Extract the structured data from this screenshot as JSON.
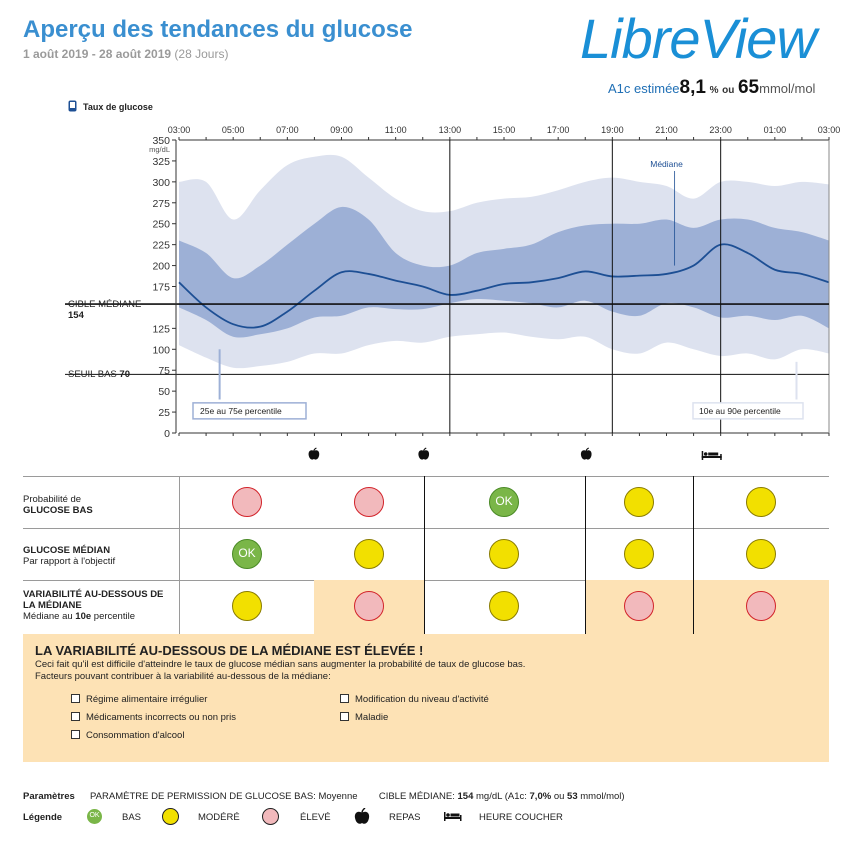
{
  "header": {
    "title": "Aperçu des tendances du glucose",
    "date_range": "1 août 2019 - 28 août 2019",
    "days": "(28 Jours)",
    "logo": "LibreView",
    "a1c_label": "A1c estimée",
    "a1c_value": "8,1",
    "a1c_pct": "%",
    "a1c_or": "ou",
    "a1c_mmol": "65",
    "a1c_unit": "mmol/mol"
  },
  "legend_top": "Taux de glucose",
  "chart_data": {
    "type": "area",
    "x_ticks": [
      "03:00",
      "05:00",
      "07:00",
      "09:00",
      "11:00",
      "13:00",
      "15:00",
      "17:00",
      "19:00",
      "21:00",
      "23:00",
      "01:00",
      "03:00"
    ],
    "y_ticks": [
      0,
      25,
      50,
      75,
      100,
      125,
      175,
      200,
      225,
      250,
      275,
      300,
      325,
      350
    ],
    "y_unit": "mg/dL",
    "ylim": [
      0,
      350
    ],
    "target_label": "CIBLE MÉDIANE",
    "target_value_label": "154",
    "target": 154,
    "low_label": "SEUIL BAS",
    "low_value_label": "70",
    "low": 70,
    "median_label": "Médiane",
    "iqr_label": "25e au 75e percentile",
    "outer_label": "10e au 90e percentile",
    "x_hours": [
      0,
      1,
      2,
      3,
      4,
      5,
      6,
      7,
      8,
      9,
      10,
      11,
      12,
      13,
      14,
      15,
      16,
      17,
      18,
      19,
      20,
      21,
      22,
      23,
      24
    ],
    "series": [
      {
        "name": "10e percentile",
        "values": [
          105,
          90,
          78,
          80,
          85,
          95,
          95,
          105,
          110,
          108,
          115,
          118,
          120,
          115,
          112,
          115,
          100,
          95,
          108,
          100,
          92,
          95,
          88,
          100,
          95
        ]
      },
      {
        "name": "25e percentile",
        "values": [
          150,
          135,
          115,
          118,
          125,
          138,
          140,
          150,
          148,
          148,
          155,
          160,
          158,
          155,
          150,
          158,
          145,
          140,
          155,
          150,
          138,
          140,
          135,
          140,
          125
        ]
      },
      {
        "name": "Médiane",
        "values": [
          180,
          150,
          130,
          127,
          145,
          170,
          192,
          190,
          182,
          175,
          165,
          170,
          178,
          180,
          185,
          193,
          187,
          188,
          190,
          200,
          225,
          215,
          195,
          190,
          180
        ]
      },
      {
        "name": "75e percentile",
        "values": [
          230,
          215,
          185,
          200,
          225,
          250,
          270,
          255,
          215,
          200,
          200,
          215,
          220,
          225,
          240,
          248,
          250,
          250,
          255,
          245,
          255,
          255,
          245,
          240,
          230
        ]
      },
      {
        "name": "90e percentile",
        "values": [
          300,
          300,
          255,
          290,
          320,
          330,
          330,
          305,
          280,
          265,
          265,
          275,
          280,
          282,
          290,
          300,
          305,
          300,
          295,
          280,
          300,
          300,
          295,
          300,
          297
        ]
      }
    ]
  },
  "events": {
    "meal_label": "REPAS",
    "bed_label": "HEURE COUCHER"
  },
  "rows": [
    {
      "label_line1": "Probabilité de",
      "label_line2": "GLUCOSE BAS",
      "cells": [
        "ÉLEVÉ",
        "ÉLEVÉ",
        "BAS",
        "MODÉRÉ",
        "MODÉRÉ"
      ]
    },
    {
      "label_line1": "GLUCOSE MÉDIAN",
      "label_line2": "Par rapport à l'objectif",
      "cells": [
        "BAS",
        "MODÉRÉ",
        "MODÉRÉ",
        "MODÉRÉ",
        "MODÉRÉ"
      ]
    },
    {
      "label_line1": "VARIABILITÉ AU-DESSOUS DE",
      "label_line2": "LA MÉDIANE",
      "label_line3_a": "Médiane au ",
      "label_line3_b": "10e",
      "label_line3_c": " percentile",
      "cells": [
        "MODÉRÉ",
        "ÉLEVÉ",
        "MODÉRÉ",
        "ÉLEVÉ",
        "ÉLEVÉ"
      ]
    }
  ],
  "ok_text": "OK",
  "warning": {
    "title": "LA VARIABILITÉ AU-DESSOUS DE LA MÉDIANE EST ÉLEVÉE !",
    "line1": "Ceci fait qu'il est difficile d'atteindre le taux de glucose médian sans augmenter la probabilité de taux de glucose bas.",
    "line2": "Facteurs pouvant contribuer à la variabilité au-dessous de la médiane:",
    "items": [
      "Régime alimentaire irrégulier",
      "Médicaments incorrects ou non pris",
      "Consommation d'alcool",
      "Modification du niveau d'activité",
      "Maladie"
    ]
  },
  "params": {
    "label": "Paramètres",
    "low_perm_label": "PARAMÈTRE DE PERMISSION DE GLUCOSE BAS:",
    "low_perm_value": "Moyenne",
    "target_label": "CIBLE MÉDIANE:",
    "target_value": "154",
    "target_unit": "mg/dL (A1c:",
    "target_a1c": "7,0%",
    "target_or": "ou",
    "target_mmol": "53",
    "target_mmol_unit": "mmol/mol)"
  },
  "legend": {
    "label": "Légende",
    "low": "BAS",
    "moderate": "MODÉRÉ",
    "high": "ÉLEVÉ",
    "meal": "REPAS",
    "bed": "HEURE COUCHER"
  },
  "colors": {
    "title": "#3a8fd0",
    "outer_band": "#dde2ef",
    "iqr_band": "#9db0d6",
    "median": "#1d4f94",
    "warning_bg": "#fde2b5"
  }
}
